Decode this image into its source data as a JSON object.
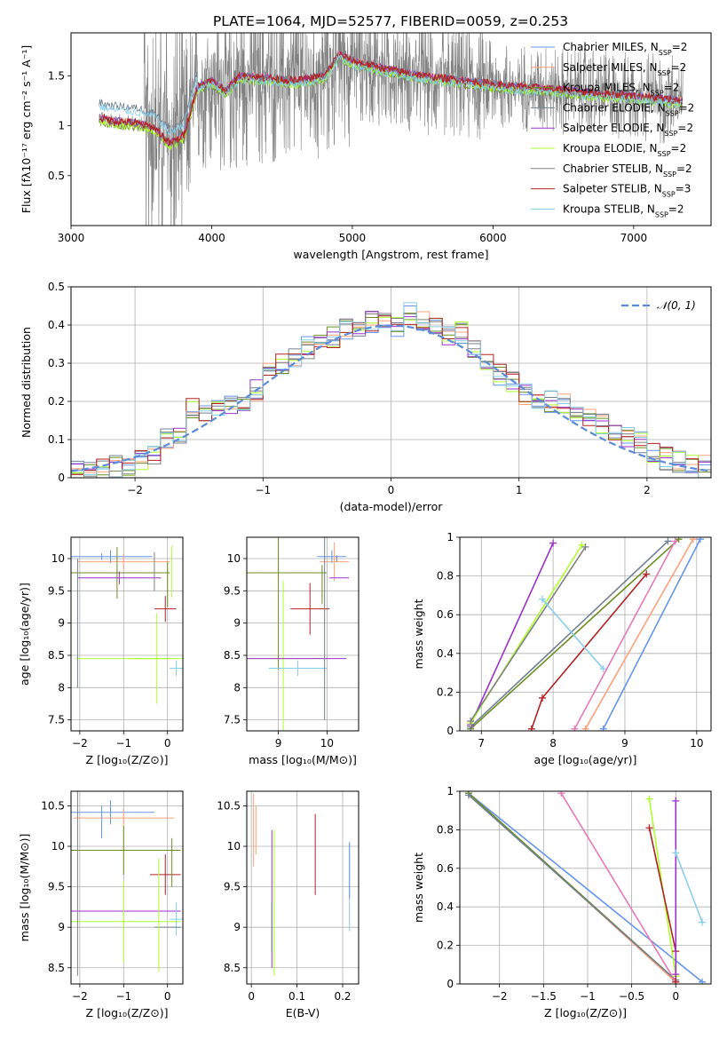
{
  "figure": {
    "title": "PLATE=1064, MJD=52577, FIBERID=0059, z=0.253"
  },
  "colors": {
    "Chabrier MILES": "#6495ED",
    "Salpeter MILES": "#FFA07A",
    "Kroupa MILES": "#6B8E23",
    "Chabrier ELODIE": "#708090",
    "Salpeter ELODIE": "#9932CC",
    "Kroupa ELODIE": "#ADFF2F",
    "Chabrier STELIB": "#808080",
    "Salpeter STELIB": "#B22222",
    "Kroupa STELIB": "#87CEEB",
    "normal_curve": "#5B8BD9",
    "data": "#808080"
  },
  "chart_data": [
    {
      "id": "spectrum",
      "type": "line",
      "xlabel": "wavelength [Angstrom, rest frame]",
      "ylabel": "Flux [fλ10⁻¹⁷ erg cm⁻² s⁻¹ A⁻¹]",
      "xlim": [
        3000,
        7550
      ],
      "ylim": [
        0,
        1.93
      ],
      "xticks": [
        3000,
        4000,
        5000,
        6000,
        7000
      ],
      "yticks": [
        0.5,
        1.0,
        1.5
      ],
      "legend_position": "top-right",
      "legend": [
        {
          "text": "Chabrier MILES, N_SSP=2",
          "color": "#6495ED"
        },
        {
          "text": "Salpeter MILES, N_SSP=2",
          "color": "#FFA07A"
        },
        {
          "text": "Kroupa MILES, N_SSP=2",
          "color": "#6B8E23"
        },
        {
          "text": "Chabrier ELODIE, N_SSP=2",
          "color": "#708090"
        },
        {
          "text": "Salpeter ELODIE, N_SSP=2",
          "color": "#9932CC"
        },
        {
          "text": "Kroupa ELODIE, N_SSP=2",
          "color": "#ADFF2F"
        },
        {
          "text": "Chabrier STELIB, N_SSP=2",
          "color": "#808080"
        },
        {
          "text": "Salpeter STELIB, N_SSP=3",
          "color": "#B22222"
        },
        {
          "text": "Kroupa STELIB, N_SSP=2",
          "color": "#87CEEB"
        }
      ],
      "data_range": [
        3200,
        7350
      ],
      "noisy_region_start": 3520,
      "model_continuum": [
        [
          3200,
          1.08
        ],
        [
          3300,
          1.05
        ],
        [
          3450,
          1.03
        ],
        [
          3600,
          0.98
        ],
        [
          3700,
          0.82
        ],
        [
          3800,
          0.9
        ],
        [
          3900,
          1.4
        ],
        [
          4000,
          1.45
        ],
        [
          4100,
          1.35
        ],
        [
          4200,
          1.5
        ],
        [
          4400,
          1.48
        ],
        [
          4600,
          1.45
        ],
        [
          4800,
          1.5
        ],
        [
          4850,
          1.6
        ],
        [
          4900,
          1.72
        ],
        [
          5000,
          1.65
        ],
        [
          5200,
          1.58
        ],
        [
          5500,
          1.5
        ],
        [
          5800,
          1.45
        ],
        [
          6100,
          1.4
        ],
        [
          6400,
          1.37
        ],
        [
          6700,
          1.33
        ],
        [
          7000,
          1.3
        ],
        [
          7350,
          1.25
        ]
      ]
    },
    {
      "id": "residuals",
      "type": "bar",
      "xlabel": "(data-model)/error",
      "ylabel": "Normed distribution",
      "xlim": [
        -2.5,
        2.5
      ],
      "ylim": [
        0,
        0.5
      ],
      "xticks": [
        -2,
        -1,
        0,
        1,
        2
      ],
      "yticks": [
        0.0,
        0.1,
        0.2,
        0.3,
        0.4,
        0.5
      ],
      "grid": true,
      "legend_position": "top-right",
      "legend_label": "𝒩(0, 1)",
      "bin_width": 0.1,
      "hist_base": [
        0.03,
        0.02,
        0.02,
        0.03,
        0.03,
        0.05,
        0.06,
        0.1,
        0.12,
        0.18,
        0.16,
        0.18,
        0.19,
        0.2,
        0.23,
        0.28,
        0.3,
        0.31,
        0.34,
        0.35,
        0.37,
        0.39,
        0.4,
        0.41,
        0.41,
        0.4,
        0.43,
        0.41,
        0.39,
        0.37,
        0.38,
        0.33,
        0.3,
        0.27,
        0.25,
        0.22,
        0.2,
        0.2,
        0.19,
        0.17,
        0.16,
        0.14,
        0.12,
        0.11,
        0.09,
        0.07,
        0.05,
        0.04,
        0.03,
        0.03
      ]
    },
    {
      "id": "age-vs-Z",
      "type": "scatter",
      "xlabel": "Z [log₁₀(Z/Z⊙)]",
      "ylabel": "age  [log₁₀(age/yr)]",
      "xlim": [
        -2.2,
        0.35
      ],
      "ylim": [
        7.33,
        10.33
      ],
      "xticks": [
        -2,
        -1,
        0
      ],
      "yticks": [
        7.5,
        8.0,
        8.5,
        9.0,
        9.5,
        10.0
      ],
      "grid": true
    },
    {
      "id": "age-vs-mass",
      "type": "scatter",
      "xlabel": "mass [log₁₀(M/M⊙)]",
      "xlim": [
        8.35,
        10.65
      ],
      "ylim": [
        7.33,
        10.33
      ],
      "xticks": [
        9,
        10
      ],
      "yticks": [
        7.5,
        8.0,
        8.5,
        9.0,
        9.5,
        10.0
      ],
      "grid": true
    },
    {
      "id": "weight-vs-age",
      "type": "line",
      "xlabel": "age  [log₁₀(age/yr)]",
      "ylabel": "mass weight",
      "xlim": [
        6.7,
        10.2
      ],
      "ylim": [
        0,
        1.0
      ],
      "xticks": [
        7,
        8,
        9,
        10
      ],
      "yticks": [
        0.0,
        0.2,
        0.4,
        0.6,
        0.8,
        1.0
      ],
      "grid": true,
      "series": [
        {
          "model": "Chabrier MILES",
          "points": [
            [
              8.7,
              0.01
            ],
            [
              10.05,
              0.99
            ]
          ]
        },
        {
          "model": "Salpeter MILES",
          "points": [
            [
              8.45,
              0.01
            ],
            [
              9.95,
              0.99
            ]
          ]
        },
        {
          "model": "Kroupa MILES",
          "points": [
            [
              6.85,
              0.01
            ],
            [
              9.75,
              0.99
            ]
          ]
        },
        {
          "model": "Chabrier ELODIE",
          "points": [
            [
              6.85,
              0.02
            ],
            [
              9.6,
              0.98
            ]
          ]
        },
        {
          "model": "Salpeter ELODIE",
          "points": [
            [
              6.85,
              0.03
            ],
            [
              8.0,
              0.97
            ]
          ]
        },
        {
          "model": "Kroupa ELODIE",
          "points": [
            [
              6.85,
              0.04
            ],
            [
              8.4,
              0.96
            ]
          ]
        },
        {
          "model": "Chabrier STELIB",
          "points": [
            [
              6.85,
              0.05
            ],
            [
              8.45,
              0.95
            ]
          ]
        },
        {
          "model": "Salpeter STELIB",
          "points": [
            [
              7.7,
              0.01
            ],
            [
              7.85,
              0.17
            ],
            [
              9.3,
              0.81
            ]
          ]
        },
        {
          "model": "Kroupa STELIB",
          "points": [
            [
              7.85,
              0.68
            ],
            [
              8.7,
              0.32
            ]
          ]
        },
        {
          "model": "Salpeter MILES (2)",
          "points": [
            [
              8.3,
              0.01
            ],
            [
              9.7,
              0.98
            ]
          ]
        }
      ]
    },
    {
      "id": "mass-vs-Z",
      "type": "scatter",
      "xlabel": "Z [log₁₀(Z/Z⊙)]",
      "ylabel": "mass [log₁₀(M/M⊙)]",
      "xlim": [
        -2.2,
        0.35
      ],
      "ylim": [
        8.3,
        10.68
      ],
      "xticks": [
        -2,
        -1,
        0
      ],
      "yticks": [
        8.5,
        9.0,
        9.5,
        10.0,
        10.5
      ],
      "grid": true
    },
    {
      "id": "mass-vs-EBV",
      "type": "scatter",
      "xlabel": "E(B-V)",
      "xlim": [
        -0.01,
        0.235
      ],
      "ylim": [
        8.3,
        10.68
      ],
      "xticks": [
        0.0,
        0.1,
        0.2
      ],
      "yticks": [
        8.5,
        9.0,
        9.5,
        10.0,
        10.5
      ],
      "grid": true
    },
    {
      "id": "weight-vs-Z",
      "type": "line",
      "xlabel": "Z [log₁₀(Z/Z⊙)]",
      "ylabel": "mass weight",
      "xlim": [
        -2.45,
        0.4
      ],
      "ylim": [
        0,
        1.0
      ],
      "xticks": [
        -2.0,
        -1.5,
        -1.0,
        -0.5,
        0.0
      ],
      "yticks": [
        0.0,
        0.2,
        0.4,
        0.6,
        0.8,
        1.0
      ],
      "grid": true
    }
  ]
}
